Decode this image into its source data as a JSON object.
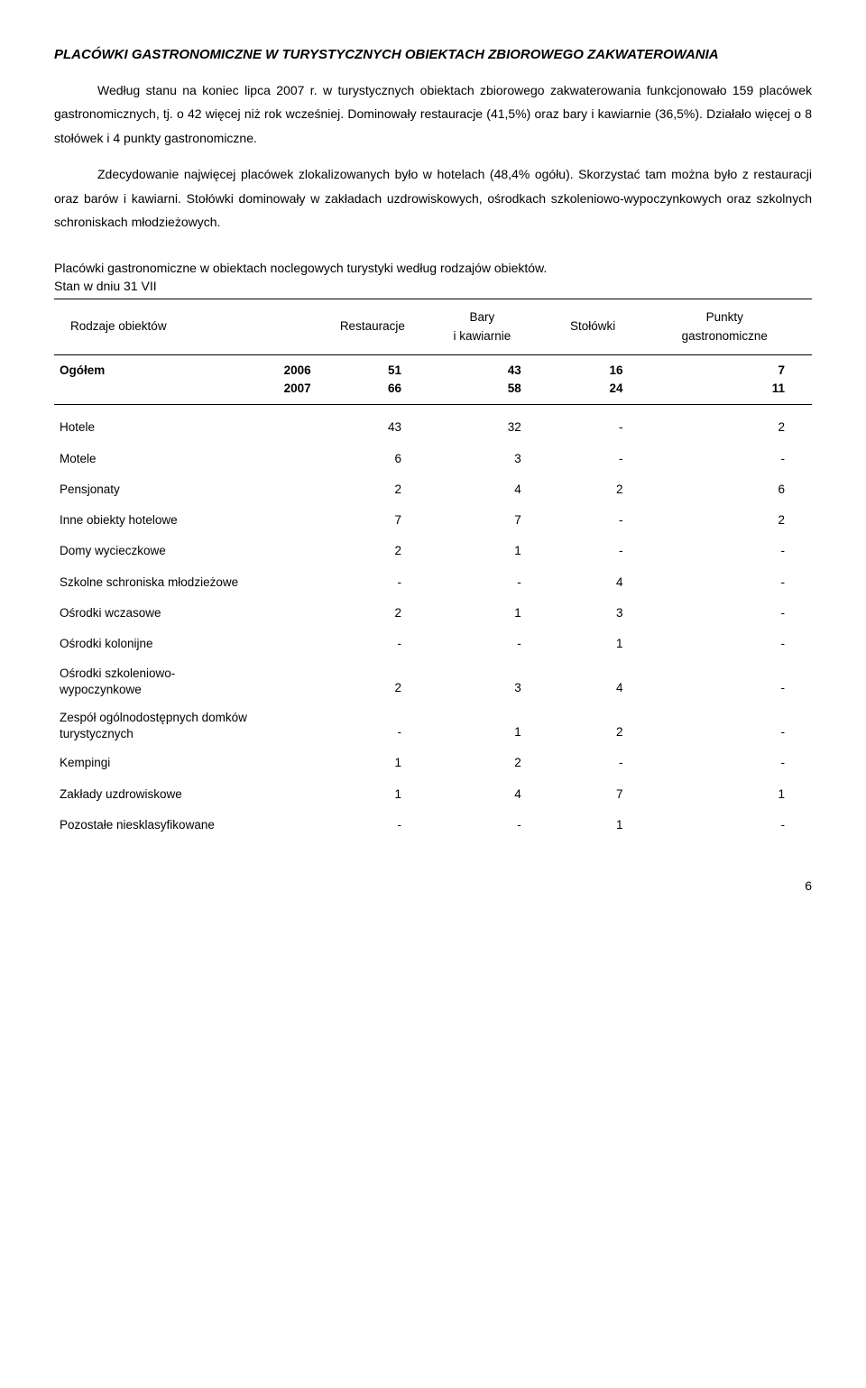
{
  "title": "PLACÓWKI GASTRONOMICZNE W TURYSTYCZNYCH OBIEKTACH ZBIOROWEGO ZAKWATEROWANIA",
  "para1": "Według stanu na koniec lipca 2007 r. w turystycznych obiektach zbiorowego zakwaterowania funkcjonowało 159 placówek gastronomicznych, tj. o 42 więcej niż rok wcześniej. Dominowały restauracje (41,5%) oraz bary i kawiarnie (36,5%). Działało więcej o 8 stołówek i 4 punkty gastronomiczne.",
  "para2": "Zdecydowanie najwięcej placówek zlokalizowanych było w hotelach (48,4% ogółu). Skorzystać tam można było z restauracji oraz barów i kawiarni. Stołówki dominowały w zakładach uzdrowiskowych, ośrodkach szkoleniowo-wypoczynkowych oraz szkolnych schroniskach młodzieżowych.",
  "tableCaption1": "Placówki gastronomiczne w obiektach noclegowych turystyki według rodzajów obiektów.",
  "tableCaption2": "Stan w dniu 31 VII",
  "headers": {
    "col1": "Rodzaje obiektów",
    "col2": "Restauracje",
    "col3a": "Bary",
    "col3b": "i kawiarnie",
    "col4": "Stołówki",
    "col5a": "Punkty",
    "col5b": "gastronomiczne"
  },
  "totals": {
    "label": "Ogółem",
    "year1": "2006",
    "year2": "2007",
    "r1": {
      "c1": "51",
      "c2": "43",
      "c3": "16",
      "c4": "7"
    },
    "r2": {
      "c1": "66",
      "c2": "58",
      "c3": "24",
      "c4": "11"
    }
  },
  "rows": [
    {
      "label": "Hotele",
      "c1": "43",
      "c2": "32",
      "c3": "-",
      "c4": "2"
    },
    {
      "label": "Motele",
      "c1": "6",
      "c2": "3",
      "c3": "-",
      "c4": "-"
    },
    {
      "label": "Pensjonaty",
      "c1": "2",
      "c2": "4",
      "c3": "2",
      "c4": "6"
    },
    {
      "label": "Inne obiekty hotelowe",
      "c1": "7",
      "c2": "7",
      "c3": "-",
      "c4": "2"
    },
    {
      "label": "Domy wycieczkowe",
      "c1": "2",
      "c2": "1",
      "c3": "-",
      "c4": "-"
    },
    {
      "label": "Szkolne schroniska młodzieżowe",
      "c1": "-",
      "c2": "-",
      "c3": "4",
      "c4": "-"
    },
    {
      "label": "Ośrodki wczasowe",
      "c1": "2",
      "c2": "1",
      "c3": "3",
      "c4": "-"
    },
    {
      "label": "Ośrodki kolonijne",
      "c1": "-",
      "c2": "-",
      "c3": "1",
      "c4": "-"
    },
    {
      "label": "Ośrodki szkoleniowo-\nwypoczynkowe",
      "c1": "2",
      "c2": "3",
      "c3": "4",
      "c4": "-"
    },
    {
      "label": "Zespół ogólnodostępnych domków\nturystycznych",
      "c1": "-",
      "c2": "1",
      "c3": "2",
      "c4": "-"
    },
    {
      "label": "Kempingi",
      "c1": "1",
      "c2": "2",
      "c3": "-",
      "c4": "-"
    },
    {
      "label": "Zakłady uzdrowiskowe",
      "c1": "1",
      "c2": "4",
      "c3": "7",
      "c4": "1"
    },
    {
      "label": "Pozostałe niesklasyfikowane",
      "c1": "-",
      "c2": "-",
      "c3": "1",
      "c4": "-"
    }
  ],
  "pageNum": "6"
}
